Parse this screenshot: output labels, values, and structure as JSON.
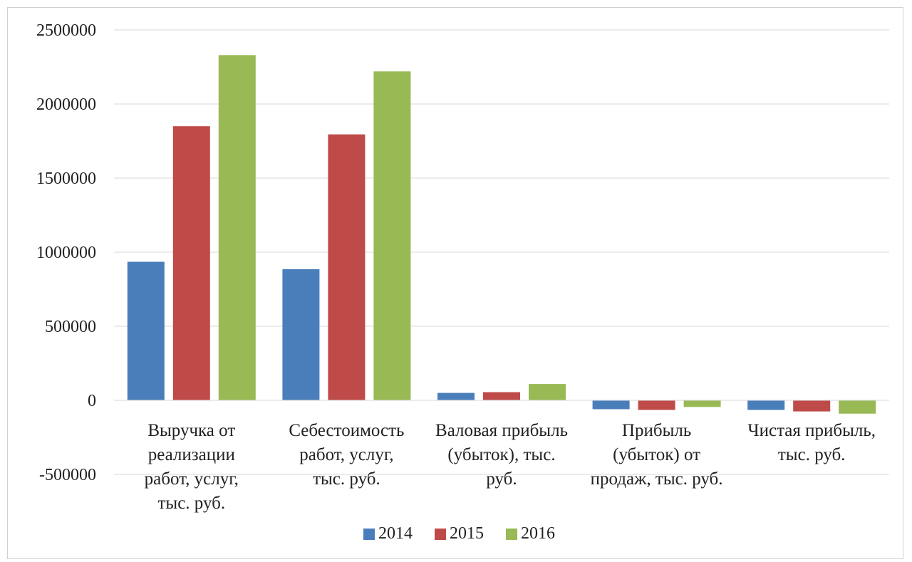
{
  "chart_data": {
    "type": "bar",
    "categories": [
      [
        "Выручка от",
        "реализации",
        "работ, услуг,",
        "тыс. руб."
      ],
      [
        "Себестоимость",
        "работ, услуг,",
        "тыс. руб."
      ],
      [
        "Валовая прибыль",
        "(убыток), тыс.",
        "руб."
      ],
      [
        "Прибыль",
        "(убыток) от",
        "продаж, тыс. руб."
      ],
      [
        "Чистая прибыль,",
        "тыс. руб."
      ]
    ],
    "series": [
      {
        "name": "2014",
        "color": "#4a7ebb",
        "values": [
          935000,
          885000,
          50000,
          -60000,
          -65000
        ]
      },
      {
        "name": "2015",
        "color": "#be4b48",
        "values": [
          1850000,
          1795000,
          55000,
          -65000,
          -75000
        ]
      },
      {
        "name": "2016",
        "color": "#98b954",
        "values": [
          2330000,
          2220000,
          110000,
          -45000,
          -90000
        ]
      }
    ],
    "ylim": [
      -500000,
      2500000
    ],
    "yticks": [
      -500000,
      0,
      500000,
      1000000,
      1500000,
      2000000,
      2500000
    ],
    "grid": true,
    "legend_position": "bottom"
  }
}
